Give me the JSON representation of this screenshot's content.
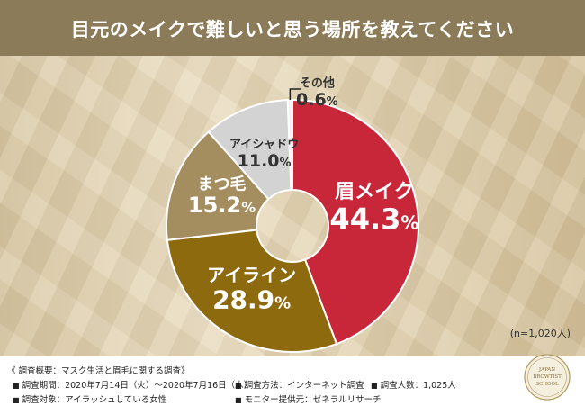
{
  "header": {
    "title": "目元のメイクで難しいと思う場所を教えてください"
  },
  "sample_size": "(n=1,020人)",
  "chart_data": {
    "type": "pie",
    "title": "目元のメイクで難しいと思う場所を教えてください",
    "slices": [
      {
        "label": "眉メイク",
        "value": 44.3,
        "num": "44.3",
        "unit": "%",
        "color": "#c72738",
        "text_color": "#ffffff"
      },
      {
        "label": "アイライン",
        "value": 28.9,
        "num": "28.9",
        "unit": "%",
        "color": "#8e6a0e",
        "text_color": "#ffffff"
      },
      {
        "label": "まつ毛",
        "value": 15.2,
        "num": "15.2",
        "unit": "%",
        "color": "#a48d5f",
        "text_color": "#ffffff"
      },
      {
        "label": "アイシャドウ",
        "value": 11.0,
        "num": "11.0",
        "unit": "%",
        "color": "#d3d3d3",
        "text_color": "#333333"
      },
      {
        "label": "その他",
        "value": 0.6,
        "num": "0.6",
        "unit": "%",
        "color": "#f2f2f2",
        "text_color": "#333333"
      }
    ]
  },
  "footer": {
    "summary": "《 調査概要：マスク生活と眉毛に関する調査》",
    "period": "調査期間：2020年7月14日（火）〜2020年7月16日（木）",
    "method": "調査方法：インターネット調査",
    "count": "調査人数：1,025人",
    "target": "調査対象：アイラッシュしている女性",
    "provider": "モニター提供元：ゼネラルリサーチ"
  },
  "logo": {
    "line1": "JAPAN",
    "line2": "BROWTIST",
    "line3": "SCHOOL"
  }
}
